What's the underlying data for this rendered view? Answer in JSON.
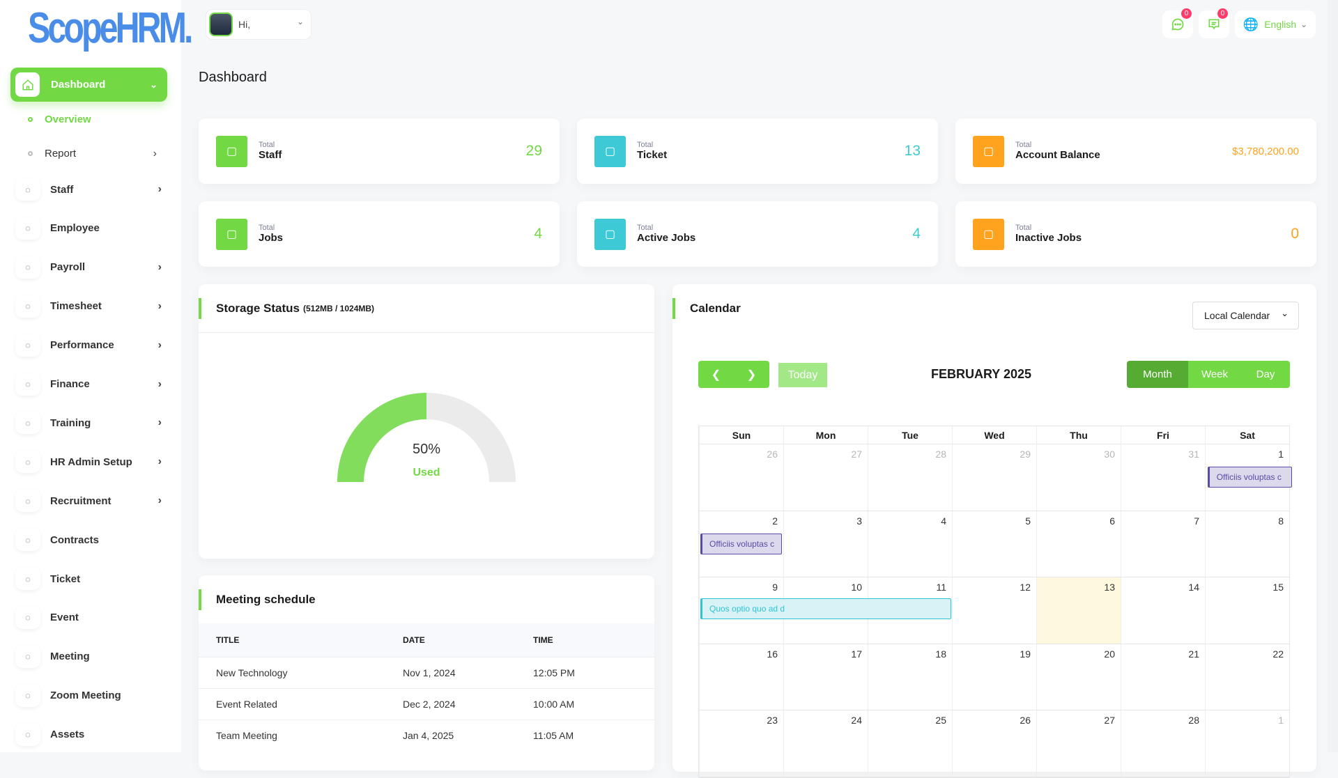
{
  "brand": {
    "logo": "ScopeHRM."
  },
  "header": {
    "greeting": "Hi,",
    "chat_badge": "0",
    "messages_badge": "0",
    "language": "English"
  },
  "sidebar": {
    "active": "Dashboard",
    "sub_items": [
      {
        "label": "Overview",
        "active": true
      },
      {
        "label": "Report",
        "has_children": true
      }
    ],
    "items": [
      {
        "label": "Staff",
        "icon": "users-icon",
        "has_children": true
      },
      {
        "label": "Employee",
        "icon": "user-icon",
        "has_children": false
      },
      {
        "label": "Payroll",
        "icon": "receipt-icon",
        "has_children": true
      },
      {
        "label": "Timesheet",
        "icon": "clock-icon",
        "has_children": true
      },
      {
        "label": "Performance",
        "icon": "target-icon",
        "has_children": true
      },
      {
        "label": "Finance",
        "icon": "wallet-icon",
        "has_children": true
      },
      {
        "label": "Training",
        "icon": "graduation-cap-icon",
        "has_children": true
      },
      {
        "label": "HR Admin Setup",
        "icon": "user-plus-icon",
        "has_children": true
      },
      {
        "label": "Recruitment",
        "icon": "document-icon",
        "has_children": true
      },
      {
        "label": "Contracts",
        "icon": "save-icon",
        "has_children": false
      },
      {
        "label": "Ticket",
        "icon": "ticket-icon",
        "has_children": false
      },
      {
        "label": "Event",
        "icon": "calendar-icon",
        "has_children": false
      },
      {
        "label": "Meeting",
        "icon": "calendar-clock-icon",
        "has_children": false
      },
      {
        "label": "Zoom Meeting",
        "icon": "video-icon",
        "has_children": false
      },
      {
        "label": "Assets",
        "icon": "asset-icon",
        "has_children": false
      }
    ]
  },
  "page": {
    "title": "Dashboard"
  },
  "stats": [
    {
      "small": "Total",
      "label": "Staff",
      "value": "29",
      "color": "#72d944",
      "icon": "users-icon"
    },
    {
      "small": "Total",
      "label": "Ticket",
      "value": "13",
      "color": "#3ec9d6",
      "icon": "ticket-icon"
    },
    {
      "small": "Total",
      "label": "Account Balance",
      "value": "$3,780,200.00",
      "color": "#ffa21d",
      "icon": "wallet-icon"
    },
    {
      "small": "Total",
      "label": "Jobs",
      "value": "4",
      "color": "#72d944",
      "icon": "briefcase-icon"
    },
    {
      "small": "Total",
      "label": "Active Jobs",
      "value": "4",
      "color": "#3ec9d6",
      "icon": "active-job-icon"
    },
    {
      "small": "Total",
      "label": "Inactive Jobs",
      "value": "0",
      "color": "#ffa21d",
      "icon": "inactive-job-icon"
    }
  ],
  "storage": {
    "title": "Storage Status",
    "detail": "(512MB / 1024MB)",
    "percent_label": "50%",
    "used_label": "Used",
    "used_fraction": 0.5,
    "used_color": "#82dd5c",
    "free_color": "#ebebeb"
  },
  "meetings": {
    "title": "Meeting schedule",
    "columns": [
      "TITLE",
      "DATE",
      "TIME"
    ],
    "rows": [
      [
        "New Technology",
        "Nov 1, 2024",
        "12:05 PM"
      ],
      [
        "Event Related",
        "Dec 2, 2024",
        "10:00 AM"
      ],
      [
        "Team Meeting",
        "Jan 4, 2025",
        "11:05 AM"
      ]
    ]
  },
  "calendar": {
    "title": "Calendar",
    "source_select": "Local Calendar",
    "today_label": "Today",
    "month_title": "FEBRUARY 2025",
    "views": [
      {
        "label": "Month",
        "active": true
      },
      {
        "label": "Week"
      },
      {
        "label": "Day"
      }
    ],
    "weekdays": [
      "Sun",
      "Mon",
      "Tue",
      "Wed",
      "Thu",
      "Fri",
      "Sat"
    ],
    "weeks": [
      [
        26,
        27,
        28,
        29,
        30,
        31,
        1
      ],
      [
        2,
        3,
        4,
        5,
        6,
        7,
        8
      ],
      [
        9,
        10,
        11,
        12,
        13,
        14,
        15
      ],
      [
        16,
        17,
        18,
        19,
        20,
        21,
        22
      ],
      [
        23,
        24,
        25,
        26,
        27,
        28,
        1
      ]
    ],
    "today": 13,
    "events": [
      {
        "title": "Officiis voluptas c",
        "week": 0,
        "start_col": 6,
        "span": 1,
        "color": "purple"
      },
      {
        "title": "Officiis voluptas c",
        "week": 1,
        "start_col": 0,
        "span": 1,
        "color": "purple"
      },
      {
        "title": "Quos optio quo ad d",
        "week": 2,
        "start_col": 0,
        "span": 3,
        "color": "cyan"
      }
    ]
  }
}
